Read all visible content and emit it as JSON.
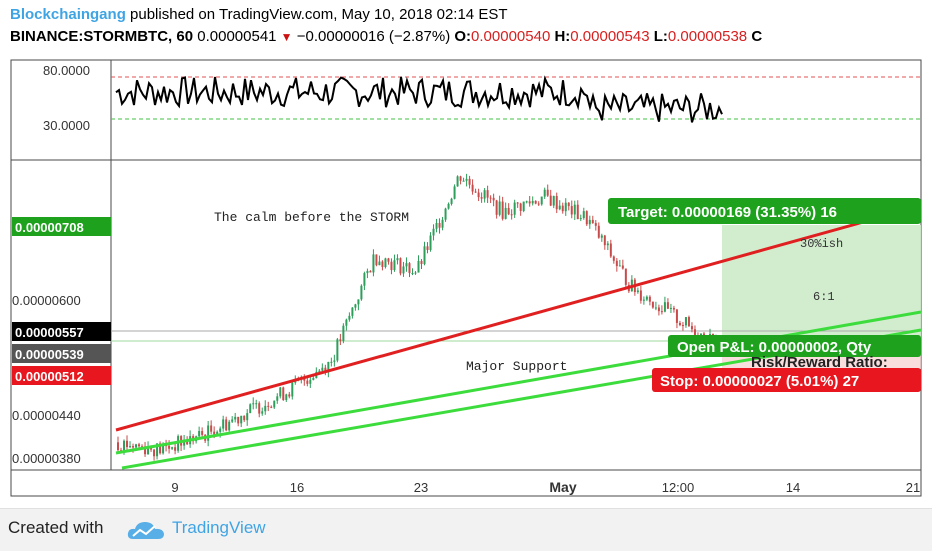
{
  "header": {
    "author": "Blockchaingang",
    "published": "published on TradingView.com, May 10, 2018 02:14 EST",
    "symbol": "BINANCE:STORMBTC, 60",
    "last": "0.00000541",
    "change": "−0.00000016 (−2.87%)",
    "o_label": "O:",
    "o_val": "0.00000540",
    "h_label": "H:",
    "h_val": "0.00000543",
    "l_label": "L:",
    "l_val": "0.00000538",
    "c_label": "C"
  },
  "indicator": {
    "ticks": [
      "80.0000",
      "30.0000"
    ],
    "upper_level": 72,
    "lower_level": 32,
    "colors": {
      "upper": "#e05050",
      "lower": "#40c040",
      "line": "#000000"
    }
  },
  "price_axis": {
    "ticks": [
      "0.00000600",
      "0.00000440",
      "0.00000380"
    ],
    "labels": {
      "target": "0.00000708",
      "last": "0.00000557",
      "current": "0.00000539",
      "stop": "0.00000512"
    }
  },
  "time_axis": {
    "labels": [
      "9",
      "16",
      "23",
      "May",
      "12:00",
      "14",
      "21"
    ]
  },
  "annotations": {
    "calm": "The calm before the STORM",
    "support": "Major Support",
    "pct": "30%ish",
    "ratio": "6:1",
    "target_box": "Target: 0.00000169 (31.35%) 16",
    "pnl_box": "Open P&L: 0.00000002, Qty",
    "rr_box": "Risk/Reward Ratio:",
    "stop_box": "Stop: 0.00000027 (5.01%) 27"
  },
  "colors": {
    "up": "#2e9e5b",
    "down": "#c94a4a",
    "target_green": "#1ea21e",
    "stop_red": "#e8161e",
    "trend_red": "#e02020",
    "trend_green": "#3ddc3d"
  },
  "footer": {
    "created": "Created with",
    "brand": "TradingView"
  },
  "chart_data": {
    "type": "candlestick",
    "title": "BINANCE:STORMBTC, 60",
    "x_labels": [
      "9",
      "16",
      "23",
      "May",
      "12:00",
      "14",
      "21"
    ],
    "y_ticks": [
      6e-06,
      4.4e-06,
      3.8e-06
    ],
    "ylim": [
      3.5e-06,
      8.5e-06
    ],
    "series": [
      {
        "name": "price",
        "x": [
          "Apr 6",
          "Apr 9",
          "Apr 12",
          "Apr 16",
          "Apr 19",
          "Apr 20",
          "Apr 21",
          "Apr 23",
          "Apr 25",
          "Apr 28",
          "Apr 30",
          "May 3",
          "May 6",
          "May 8",
          "May 10"
        ],
        "values": [
          4.1e-06,
          4e-06,
          4.2e-06,
          4.5e-06,
          4.8e-06,
          5.2e-06,
          6.6e-06,
          6.4e-06,
          7.7e-06,
          7.2e-06,
          7.4e-06,
          7.1e-06,
          6.2e-06,
          5.8e-06,
          5.4e-06
        ]
      }
    ],
    "levels": {
      "target": 7.08e-06,
      "entry": 5.39e-06,
      "stop": 5.12e-06,
      "last": 5.57e-06
    }
  }
}
